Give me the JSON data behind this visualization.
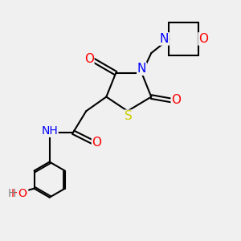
{
  "bg_color": "#f0f0f0",
  "atom_colors": {
    "C": "#000000",
    "N": "#0000ff",
    "O": "#ff0000",
    "S": "#cccc00",
    "H": "#808080"
  },
  "bond_color": "#000000",
  "bond_width": 1.5,
  "font_size": 9
}
